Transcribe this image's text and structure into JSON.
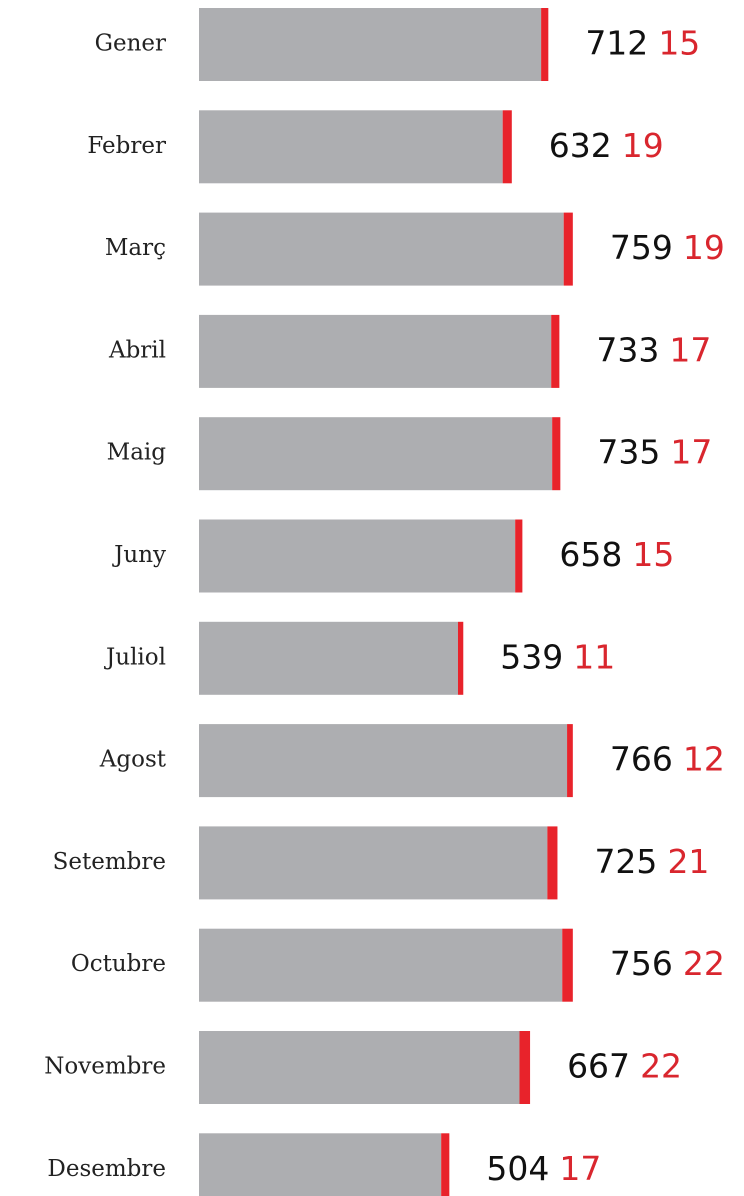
{
  "chart_data": {
    "type": "bar",
    "orientation": "horizontal",
    "stacked": true,
    "categories": [
      "Gener",
      "Febrer",
      "Març",
      "Abril",
      "Maig",
      "Juny",
      "Juliol",
      "Agost",
      "Setembre",
      "Octubre",
      "Novembre",
      "Desembre"
    ],
    "series": [
      {
        "color": "#adaeb1",
        "label_color": "#111111",
        "values": [
          712,
          632,
          759,
          733,
          735,
          658,
          539,
          766,
          725,
          756,
          667,
          504
        ]
      },
      {
        "color": "#e8232b",
        "label_color": "#d9262e",
        "values": [
          15,
          19,
          19,
          17,
          17,
          15,
          11,
          12,
          21,
          22,
          22,
          17
        ]
      }
    ]
  }
}
